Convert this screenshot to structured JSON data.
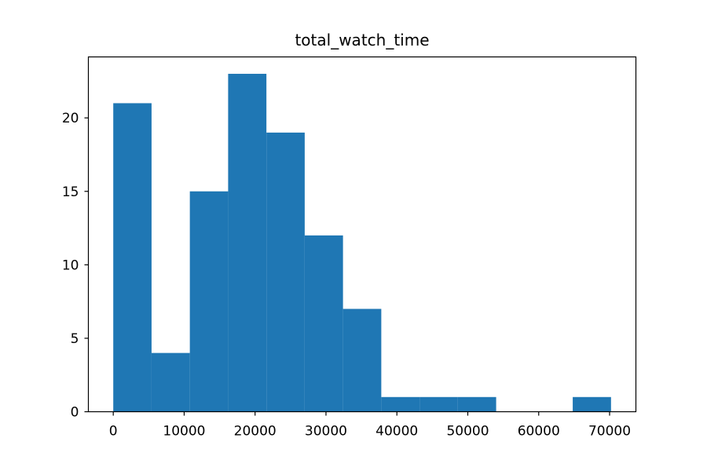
{
  "chart_data": {
    "type": "bar",
    "subtype": "histogram",
    "title": "total_watch_time",
    "xlabel": "",
    "ylabel": "",
    "color": "#1f77b4",
    "grid": false,
    "bin_edges": [
      0,
      5400,
      10800,
      16200,
      21600,
      27000,
      32400,
      37800,
      43200,
      48600,
      54000,
      59400,
      64800,
      70200
    ],
    "counts": [
      21,
      4,
      15,
      23,
      19,
      12,
      7,
      1,
      1,
      1,
      0,
      0,
      1
    ],
    "xlim": [
      -3510,
      73710
    ],
    "ylim": [
      0,
      24.15
    ],
    "xticks": [
      0,
      10000,
      20000,
      30000,
      40000,
      50000,
      60000,
      70000
    ],
    "yticks": [
      0,
      5,
      10,
      15,
      20
    ]
  }
}
